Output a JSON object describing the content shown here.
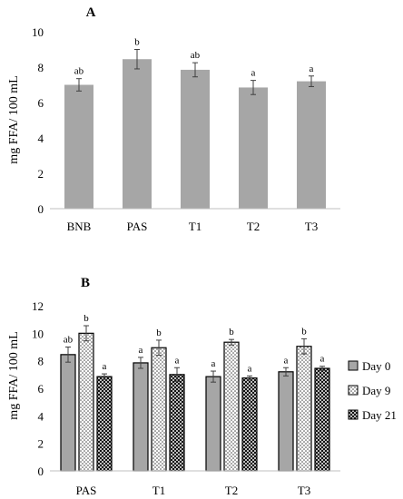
{
  "chart_data": [
    {
      "type": "bar",
      "panel_label": "A",
      "categories": [
        "BNB",
        "PAS",
        "T1",
        "T2",
        "T3"
      ],
      "values": [
        7.0,
        8.45,
        7.85,
        6.85,
        7.2
      ],
      "errors": [
        0.35,
        0.55,
        0.4,
        0.4,
        0.3
      ],
      "significance": [
        "ab",
        "b",
        "ab",
        "a",
        "a"
      ],
      "color": "#a6a6a6",
      "ylabel": "mg FFA/ 100 mL",
      "ylim": [
        0,
        10
      ],
      "yticks": [
        0,
        2,
        4,
        6,
        8,
        10
      ],
      "grid": false
    },
    {
      "type": "bar",
      "panel_label": "B",
      "categories": [
        "PAS",
        "T1",
        "T2",
        "T3"
      ],
      "series": [
        {
          "name": "Day 0",
          "values": [
            8.45,
            7.85,
            6.85,
            7.2
          ],
          "errors": [
            0.55,
            0.4,
            0.4,
            0.3
          ],
          "significance": [
            "ab",
            "a",
            "a",
            "a"
          ],
          "fill": "#a6a6a6",
          "pattern": "solid"
        },
        {
          "name": "Day 9",
          "values": [
            10.0,
            8.95,
            9.35,
            9.05
          ],
          "errors": [
            0.55,
            0.55,
            0.2,
            0.55
          ],
          "significance": [
            "b",
            "b",
            "b",
            "b"
          ],
          "fill": "#ffffff",
          "pattern": "dots"
        },
        {
          "name": "Day 21",
          "values": [
            6.85,
            7.0,
            6.75,
            7.45
          ],
          "errors": [
            0.2,
            0.5,
            0.15,
            0.15
          ],
          "significance": [
            "a",
            "a",
            "a",
            "a"
          ],
          "fill": "#222222",
          "pattern": "checker"
        }
      ],
      "ylabel": "mg FFA/ 100 mL",
      "ylim": [
        0,
        12
      ],
      "yticks": [
        0,
        2,
        4,
        6,
        8,
        10,
        12
      ],
      "legend_position": "right",
      "grid": false
    }
  ]
}
